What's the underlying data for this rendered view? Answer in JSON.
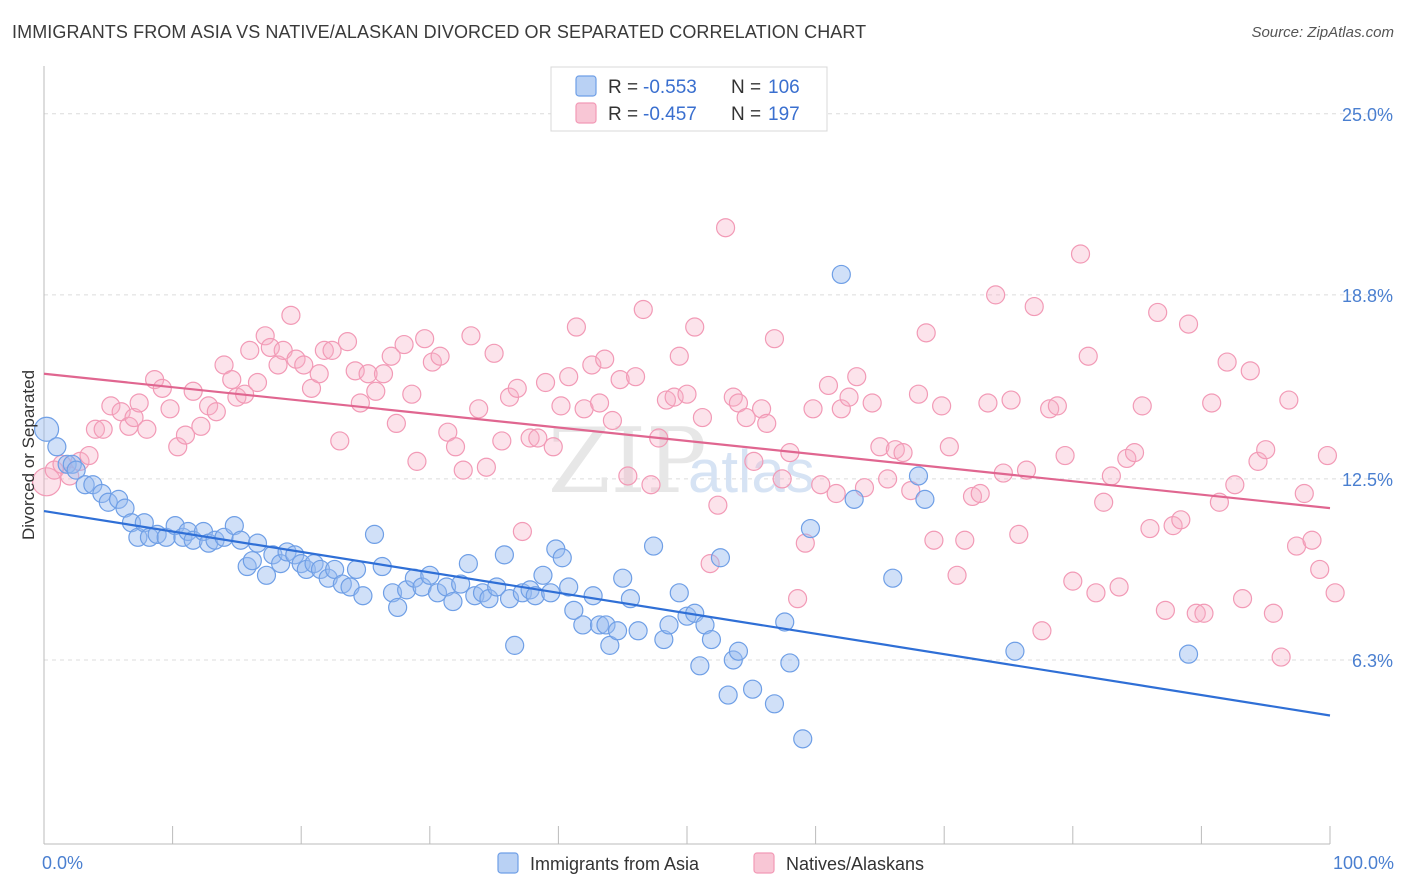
{
  "header": {
    "title": "IMMIGRANTS FROM ASIA VS NATIVE/ALASKAN DIVORCED OR SEPARATED CORRELATION CHART",
    "source": "Source: ZipAtlas.com"
  },
  "watermark": {
    "zip": "ZIP",
    "atlas": "atlas"
  },
  "legend_top": {
    "rows": [
      {
        "r_label": "R = ",
        "r_value": "-0.553",
        "n_label": "N = ",
        "n_value": "106"
      },
      {
        "r_label": "R = ",
        "r_value": "-0.457",
        "n_label": "N = ",
        "n_value": "197"
      }
    ]
  },
  "chart_data": {
    "type": "scatter",
    "title": "IMMIGRANTS FROM ASIA VS NATIVE/ALASKAN DIVORCED OR SEPARATED CORRELATION CHART",
    "xlabel": "",
    "ylabel": "Divorced or Separated",
    "xlim": [
      0,
      100
    ],
    "ylim": [
      0,
      26.5
    ],
    "x_tick_labels": [
      "0.0%",
      "100.0%"
    ],
    "y_ticks": [
      6.3,
      12.5,
      18.8,
      25.0
    ],
    "y_tick_labels": [
      "6.3%",
      "12.5%",
      "18.8%",
      "25.0%"
    ],
    "legend": [
      "Immigrants from Asia",
      "Natives/Alaskans"
    ],
    "colors": {
      "asia": "#6f9fe6",
      "asia_line": "#2f6fd6",
      "native": "#f29ab6",
      "native_line": "#e06690"
    },
    "series": [
      {
        "name": "Immigrants from Asia",
        "trend": [
          [
            0,
            11.4
          ],
          [
            100,
            4.4
          ]
        ],
        "points": [
          [
            0.2,
            14.2
          ],
          [
            1,
            13.6
          ],
          [
            1.8,
            13
          ],
          [
            2.2,
            13
          ],
          [
            2.5,
            12.8
          ],
          [
            3.2,
            12.3
          ],
          [
            3.8,
            12.3
          ],
          [
            4.5,
            12
          ],
          [
            5,
            11.7
          ],
          [
            5.8,
            11.8
          ],
          [
            6.3,
            11.5
          ],
          [
            6.8,
            11
          ],
          [
            7.3,
            10.5
          ],
          [
            7.8,
            11
          ],
          [
            8.2,
            10.5
          ],
          [
            8.8,
            10.6
          ],
          [
            9.5,
            10.5
          ],
          [
            10.2,
            10.9
          ],
          [
            10.8,
            10.5
          ],
          [
            11.2,
            10.7
          ],
          [
            11.6,
            10.4
          ],
          [
            12.4,
            10.7
          ],
          [
            12.8,
            10.3
          ],
          [
            13.3,
            10.4
          ],
          [
            14,
            10.5
          ],
          [
            14.8,
            10.9
          ],
          [
            15.3,
            10.4
          ],
          [
            15.8,
            9.5
          ],
          [
            16.2,
            9.7
          ],
          [
            16.6,
            10.3
          ],
          [
            17.3,
            9.2
          ],
          [
            17.8,
            9.9
          ],
          [
            18.4,
            9.6
          ],
          [
            18.9,
            10
          ],
          [
            19.5,
            9.9
          ],
          [
            20,
            9.6
          ],
          [
            20.4,
            9.4
          ],
          [
            21,
            9.6
          ],
          [
            21.5,
            9.4
          ],
          [
            22.1,
            9.1
          ],
          [
            22.6,
            9.4
          ],
          [
            23.2,
            8.9
          ],
          [
            23.8,
            8.8
          ],
          [
            24.3,
            9.4
          ],
          [
            24.8,
            8.5
          ],
          [
            25.7,
            10.6
          ],
          [
            26.3,
            9.5
          ],
          [
            27.1,
            8.6
          ],
          [
            27.5,
            8.1
          ],
          [
            28.2,
            8.7
          ],
          [
            28.8,
            9.1
          ],
          [
            29.4,
            8.8
          ],
          [
            30,
            9.2
          ],
          [
            30.6,
            8.6
          ],
          [
            31.3,
            8.8
          ],
          [
            31.8,
            8.3
          ],
          [
            32.4,
            8.9
          ],
          [
            33,
            9.6
          ],
          [
            33.5,
            8.5
          ],
          [
            34.1,
            8.6
          ],
          [
            34.6,
            8.4
          ],
          [
            35.2,
            8.8
          ],
          [
            35.8,
            9.9
          ],
          [
            36.2,
            8.4
          ],
          [
            36.6,
            6.8
          ],
          [
            37.2,
            8.6
          ],
          [
            37.8,
            8.7
          ],
          [
            38.2,
            8.5
          ],
          [
            38.8,
            9.2
          ],
          [
            39.4,
            8.6
          ],
          [
            39.8,
            10.1
          ],
          [
            40.3,
            9.8
          ],
          [
            40.8,
            8.8
          ],
          [
            41.2,
            8
          ],
          [
            41.9,
            7.5
          ],
          [
            42.7,
            8.5
          ],
          [
            43.2,
            7.5
          ],
          [
            43.7,
            7.5
          ],
          [
            44,
            6.8
          ],
          [
            44.6,
            7.3
          ],
          [
            45,
            9.1
          ],
          [
            45.6,
            8.4
          ],
          [
            46.2,
            7.3
          ],
          [
            47.4,
            10.2
          ],
          [
            48.2,
            7
          ],
          [
            48.6,
            7.5
          ],
          [
            49.4,
            8.6
          ],
          [
            50,
            7.8
          ],
          [
            50.6,
            7.9
          ],
          [
            51,
            6.1
          ],
          [
            51.4,
            7.5
          ],
          [
            51.9,
            7
          ],
          [
            52.6,
            9.8
          ],
          [
            53.2,
            5.1
          ],
          [
            53.6,
            6.3
          ],
          [
            54,
            6.6
          ],
          [
            55.1,
            5.3
          ],
          [
            56.8,
            4.8
          ],
          [
            57.6,
            7.6
          ],
          [
            58,
            6.2
          ],
          [
            59,
            3.6
          ],
          [
            59.6,
            10.8
          ],
          [
            62,
            19.5
          ],
          [
            63,
            11.8
          ],
          [
            66,
            9.1
          ],
          [
            68,
            12.6
          ],
          [
            68.5,
            11.8
          ],
          [
            75.5,
            6.6
          ],
          [
            89,
            6.5
          ]
        ]
      },
      {
        "name": "Natives/Alaskans",
        "trend": [
          [
            0,
            16.1
          ],
          [
            100,
            11.5
          ]
        ],
        "points": [
          [
            0.2,
            12.4
          ],
          [
            0.8,
            12.8
          ],
          [
            1.4,
            13
          ],
          [
            2,
            12.6
          ],
          [
            2.8,
            13.1
          ],
          [
            3.5,
            13.3
          ],
          [
            4,
            14.2
          ],
          [
            4.6,
            14.2
          ],
          [
            5.2,
            15
          ],
          [
            6,
            14.8
          ],
          [
            6.6,
            14.3
          ],
          [
            7,
            14.6
          ],
          [
            7.4,
            15.1
          ],
          [
            8,
            14.2
          ],
          [
            8.6,
            15.9
          ],
          [
            9.2,
            15.6
          ],
          [
            9.8,
            14.9
          ],
          [
            10.4,
            13.6
          ],
          [
            11,
            14
          ],
          [
            11.6,
            15.5
          ],
          [
            12.2,
            14.3
          ],
          [
            12.8,
            15
          ],
          [
            13.4,
            14.8
          ],
          [
            14,
            16.4
          ],
          [
            14.6,
            15.9
          ],
          [
            15,
            15.3
          ],
          [
            15.6,
            15.4
          ],
          [
            16,
            16.9
          ],
          [
            16.6,
            15.8
          ],
          [
            17.2,
            17.4
          ],
          [
            17.6,
            17
          ],
          [
            18.2,
            16.4
          ],
          [
            18.6,
            16.9
          ],
          [
            19.2,
            18.1
          ],
          [
            19.6,
            16.6
          ],
          [
            20.2,
            16.4
          ],
          [
            20.8,
            15.6
          ],
          [
            21.4,
            16.1
          ],
          [
            21.8,
            16.9
          ],
          [
            22.4,
            16.9
          ],
          [
            23,
            13.8
          ],
          [
            23.6,
            17.2
          ],
          [
            24.2,
            16.2
          ],
          [
            24.6,
            15.1
          ],
          [
            25.2,
            16.1
          ],
          [
            25.8,
            15.5
          ],
          [
            26.4,
            16.1
          ],
          [
            27,
            16.7
          ],
          [
            27.4,
            14.4
          ],
          [
            28,
            17.1
          ],
          [
            28.6,
            15.4
          ],
          [
            29,
            13.1
          ],
          [
            29.6,
            17.3
          ],
          [
            30.2,
            16.5
          ],
          [
            30.8,
            16.7
          ],
          [
            31.4,
            14.1
          ],
          [
            32,
            13.6
          ],
          [
            32.6,
            12.8
          ],
          [
            33.2,
            17.4
          ],
          [
            33.8,
            14.9
          ],
          [
            34.4,
            12.9
          ],
          [
            35,
            16.8
          ],
          [
            35.6,
            13.8
          ],
          [
            36.2,
            15.3
          ],
          [
            36.8,
            15.6
          ],
          [
            37.2,
            10.7
          ],
          [
            37.8,
            13.9
          ],
          [
            38.4,
            13.9
          ],
          [
            39,
            15.8
          ],
          [
            39.6,
            13.6
          ],
          [
            40.2,
            15
          ],
          [
            40.8,
            16
          ],
          [
            41.4,
            17.7
          ],
          [
            42,
            14.9
          ],
          [
            42.6,
            16.4
          ],
          [
            43.2,
            15.1
          ],
          [
            43.6,
            16.6
          ],
          [
            44.2,
            14.5
          ],
          [
            44.8,
            15.9
          ],
          [
            45.4,
            12.6
          ],
          [
            46,
            16
          ],
          [
            46.6,
            18.3
          ],
          [
            47.2,
            12.3
          ],
          [
            47.8,
            13.9
          ],
          [
            48.4,
            15.2
          ],
          [
            49,
            15.3
          ],
          [
            49.4,
            16.7
          ],
          [
            50,
            15.4
          ],
          [
            50.6,
            17.7
          ],
          [
            51.2,
            14.6
          ],
          [
            51.8,
            9.6
          ],
          [
            52.4,
            11.6
          ],
          [
            53,
            21.1
          ],
          [
            53.6,
            15.3
          ],
          [
            54,
            15.1
          ],
          [
            54.6,
            14.6
          ],
          [
            55.2,
            13.1
          ],
          [
            55.8,
            14.9
          ],
          [
            56.2,
            14.4
          ],
          [
            56.8,
            17.3
          ],
          [
            57.4,
            12.5
          ],
          [
            58,
            13.4
          ],
          [
            58.6,
            8.4
          ],
          [
            59.2,
            10.3
          ],
          [
            59.8,
            14.9
          ],
          [
            60.4,
            12.3
          ],
          [
            61,
            15.7
          ],
          [
            61.6,
            12
          ],
          [
            62,
            14.9
          ],
          [
            62.6,
            15.3
          ],
          [
            63.2,
            16
          ],
          [
            63.8,
            12.2
          ],
          [
            64.4,
            15.1
          ],
          [
            65,
            13.6
          ],
          [
            65.6,
            12.5
          ],
          [
            66.2,
            13.5
          ],
          [
            66.8,
            13.4
          ],
          [
            67.4,
            12.1
          ],
          [
            68,
            15.4
          ],
          [
            68.6,
            17.5
          ],
          [
            69.2,
            10.4
          ],
          [
            69.8,
            15
          ],
          [
            70.4,
            13.6
          ],
          [
            71,
            9.2
          ],
          [
            71.6,
            10.4
          ],
          [
            72.2,
            11.9
          ],
          [
            72.8,
            12
          ],
          [
            73.4,
            15.1
          ],
          [
            74,
            18.8
          ],
          [
            74.6,
            12.7
          ],
          [
            75.2,
            15.2
          ],
          [
            75.8,
            10.6
          ],
          [
            76.4,
            12.8
          ],
          [
            77,
            18.4
          ],
          [
            77.6,
            7.3
          ],
          [
            78.2,
            14.9
          ],
          [
            78.8,
            15
          ],
          [
            79.4,
            13.3
          ],
          [
            80,
            9
          ],
          [
            80.6,
            20.2
          ],
          [
            81.2,
            16.7
          ],
          [
            81.8,
            8.6
          ],
          [
            82.4,
            11.7
          ],
          [
            83,
            12.6
          ],
          [
            83.6,
            8.8
          ],
          [
            84.2,
            13.2
          ],
          [
            84.8,
            13.4
          ],
          [
            85.4,
            15
          ],
          [
            86,
            10.8
          ],
          [
            86.6,
            18.2
          ],
          [
            87.2,
            8
          ],
          [
            87.8,
            10.9
          ],
          [
            88.4,
            11.1
          ],
          [
            89,
            17.8
          ],
          [
            89.6,
            7.9
          ],
          [
            90.2,
            7.9
          ],
          [
            90.8,
            15.1
          ],
          [
            91.4,
            11.7
          ],
          [
            92,
            16.5
          ],
          [
            92.6,
            12.3
          ],
          [
            93.2,
            8.4
          ],
          [
            93.8,
            16.2
          ],
          [
            94.4,
            13.1
          ],
          [
            95,
            13.5
          ],
          [
            95.6,
            7.9
          ],
          [
            96.2,
            6.4
          ],
          [
            96.8,
            15.2
          ],
          [
            97.4,
            10.2
          ],
          [
            98,
            12
          ],
          [
            98.6,
            10.4
          ],
          [
            99.2,
            9.4
          ],
          [
            99.8,
            13.3
          ],
          [
            100.4,
            8.6
          ]
        ]
      }
    ]
  },
  "bottom_legend": {
    "items": [
      "Immigrants from Asia",
      "Natives/Alaskans"
    ]
  }
}
